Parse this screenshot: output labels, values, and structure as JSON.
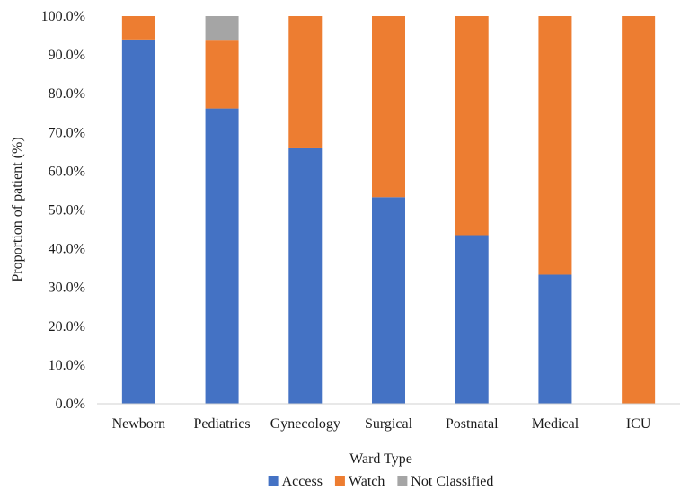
{
  "chart_data": {
    "type": "bar",
    "stacked": true,
    "categories": [
      "Newborn",
      "Pediatrics",
      "Gynecology",
      "Surgical",
      "Postnatal",
      "Medical",
      "ICU"
    ],
    "series": [
      {
        "name": "Access",
        "color": "#4472C4",
        "values": [
          94.0,
          76.2,
          65.9,
          53.3,
          43.5,
          33.3,
          0.0
        ]
      },
      {
        "name": "Watch",
        "color": "#ED7D31",
        "values": [
          6.0,
          17.5,
          34.1,
          46.7,
          56.5,
          66.7,
          100.0
        ]
      },
      {
        "name": "Not Classified",
        "color": "#A5A5A5",
        "values": [
          0.0,
          6.3,
          0.0,
          0.0,
          0.0,
          0.0,
          0.0
        ]
      }
    ],
    "xlabel": "Ward Type",
    "ylabel": "Proportion of patient (%)",
    "ylim": [
      0,
      100
    ],
    "yticks": [
      "0.0%",
      "10.0%",
      "20.0%",
      "30.0%",
      "40.0%",
      "50.0%",
      "60.0%",
      "70.0%",
      "80.0%",
      "90.0%",
      "100.0%"
    ],
    "grid": false,
    "legend_position": "bottom"
  }
}
